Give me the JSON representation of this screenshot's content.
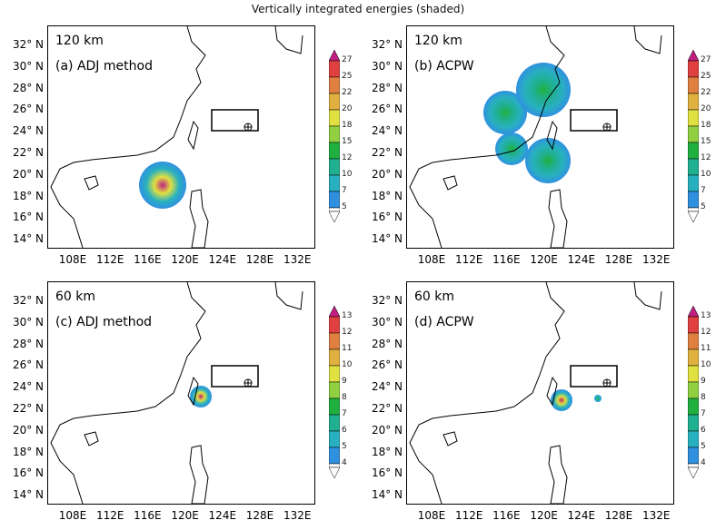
{
  "title": "Vertically integrated energies (shaded)",
  "panels": [
    {
      "resolution": "120 km",
      "label": "(a) ADJ method"
    },
    {
      "resolution": "120 km",
      "label": "(b) ACPW"
    },
    {
      "resolution": "60 km",
      "label": "(c) ADJ method"
    },
    {
      "resolution": "60 km",
      "label": "(d) ACPW"
    }
  ],
  "lat_ticks": [
    "32° N",
    "30° N",
    "28° N",
    "26° N",
    "24° N",
    "22° N",
    "20° N",
    "18° N",
    "16° N",
    "14° N"
  ],
  "lon_ticks": [
    "108E",
    "112E",
    "116E",
    "120E",
    "124E",
    "128E",
    "132E"
  ],
  "colorbar_120km": [
    "5",
    "7",
    "10",
    "12",
    "15",
    "18",
    "20",
    "22",
    "25",
    "27"
  ],
  "colorbar_60km": [
    "4",
    "5",
    "6",
    "7",
    "8",
    "9",
    "10",
    "11",
    "12",
    "13"
  ],
  "colors": [
    "#3090e0",
    "#28b0c0",
    "#20b090",
    "#20b040",
    "#90d040",
    "#e0e040",
    "#e0b040",
    "#e08040",
    "#e04040",
    "#c02080"
  ]
}
